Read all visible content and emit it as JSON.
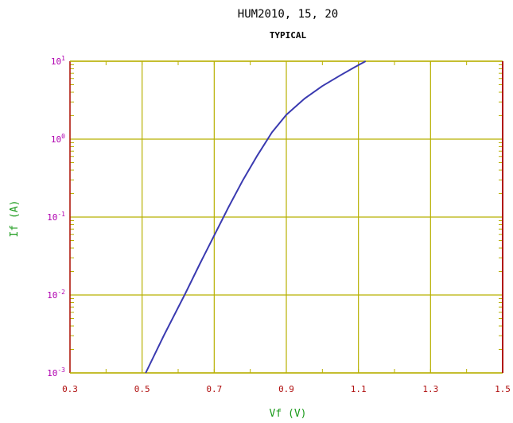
{
  "chart_data": {
    "type": "line",
    "title": "HUM2010, 15, 20",
    "subtitle": "TYPICAL",
    "xlabel": "Vf (V)",
    "ylabel": "If (A)",
    "xlim": [
      0.3,
      1.5
    ],
    "ylim": [
      0.001,
      10
    ],
    "yscale": "log",
    "grid": true,
    "x_ticks": [
      {
        "value": 0.3,
        "label": "0.3"
      },
      {
        "value": 0.5,
        "label": "0.5"
      },
      {
        "value": 0.7,
        "label": "0.7"
      },
      {
        "value": 0.9,
        "label": "0.9"
      },
      {
        "value": 1.1,
        "label": "1.1"
      },
      {
        "value": 1.3,
        "label": "1.3"
      },
      {
        "value": 1.5,
        "label": "1.5"
      }
    ],
    "y_ticks": [
      {
        "value": 0.001,
        "base": "10",
        "exp": "-3"
      },
      {
        "value": 0.01,
        "base": "10",
        "exp": "-2"
      },
      {
        "value": 0.1,
        "base": "10",
        "exp": "-1"
      },
      {
        "value": 1,
        "base": "10",
        "exp": "0"
      },
      {
        "value": 10,
        "base": "10",
        "exp": "1"
      }
    ],
    "series": [
      {
        "color": "#3a3ab0",
        "x": [
          0.51,
          0.56,
          0.62,
          0.66,
          0.7,
          0.74,
          0.78,
          0.82,
          0.86,
          0.9,
          0.95,
          1.0,
          1.05,
          1.09,
          1.12
        ],
        "y": [
          0.001,
          0.003,
          0.0105,
          0.025,
          0.058,
          0.135,
          0.3,
          0.62,
          1.22,
          2.05,
          3.3,
          4.8,
          6.6,
          8.4,
          10
        ]
      }
    ]
  },
  "colors": {
    "grid": "#b8b000",
    "frame": "#b8b000",
    "frame_right": "#b01010",
    "x_tick_labels": "#b01010",
    "y_tick_labels": "#b000b0",
    "axis_labels": "#1a9a1a",
    "curve": "#3a3ab0"
  }
}
